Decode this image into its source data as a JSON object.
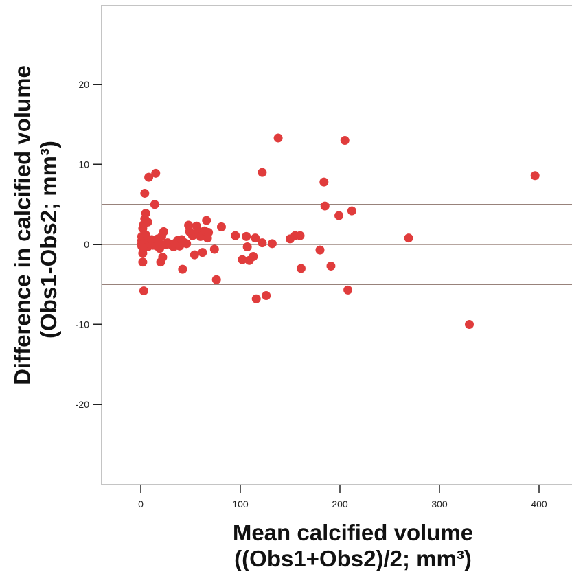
{
  "chart_data": {
    "type": "scatter",
    "title": "",
    "xlabel": [
      "Mean calcified volume",
      "((Obs1+Obs2)/2; mm³)"
    ],
    "ylabel": [
      "Difference in calcified volume",
      "(Obs1-Obs2; mm³)"
    ],
    "xlim": [
      -40,
      430
    ],
    "ylim": [
      -30,
      30
    ],
    "xticks": [
      0,
      100,
      200,
      300,
      400
    ],
    "yticks": [
      -20,
      -10,
      0,
      10,
      20
    ],
    "reference_lines": [
      5,
      0,
      -5
    ],
    "grid": false,
    "legend": "none",
    "colors": {
      "point": "#e03c3c",
      "reference_line": "#8a7068",
      "axis": "#555555",
      "frame": "#888888"
    },
    "series": [
      {
        "points": [
          [
            1,
            0.1
          ],
          [
            1,
            0.5
          ],
          [
            1,
            1
          ],
          [
            1,
            -0.2
          ],
          [
            2,
            2
          ],
          [
            2,
            0.3
          ],
          [
            2,
            -0.4
          ],
          [
            2,
            -1.1
          ],
          [
            2,
            -2.2
          ],
          [
            3,
            2.5
          ],
          [
            3,
            0.8
          ],
          [
            3,
            -5.8
          ],
          [
            4,
            6.4
          ],
          [
            4,
            3.2
          ],
          [
            5,
            3.9
          ],
          [
            5,
            1.2
          ],
          [
            5,
            0.2
          ],
          [
            6,
            0.6
          ],
          [
            7,
            2.8
          ],
          [
            7,
            -0.3
          ],
          [
            8,
            8.4
          ],
          [
            8,
            0.5
          ],
          [
            9,
            0.2
          ],
          [
            10,
            0
          ],
          [
            11,
            0.6
          ],
          [
            12,
            -0.1
          ],
          [
            14,
            5
          ],
          [
            14,
            0.4
          ],
          [
            15,
            8.9
          ],
          [
            16,
            -0.2
          ],
          [
            17,
            0.7
          ],
          [
            18,
            0.2
          ],
          [
            19,
            -0.5
          ],
          [
            20,
            -2.2
          ],
          [
            21,
            1
          ],
          [
            22,
            -1.6
          ],
          [
            23,
            1.6
          ],
          [
            25,
            0
          ],
          [
            27,
            0.2
          ],
          [
            30,
            0
          ],
          [
            33,
            -0.3
          ],
          [
            35,
            0.2
          ],
          [
            37,
            0.5
          ],
          [
            39,
            -0.2
          ],
          [
            41,
            0.6
          ],
          [
            42,
            -3.1
          ],
          [
            44,
            0.2
          ],
          [
            46,
            0.1
          ],
          [
            48,
            2.4
          ],
          [
            49,
            1.6
          ],
          [
            52,
            1.1
          ],
          [
            54,
            -1.3
          ],
          [
            56,
            2.3
          ],
          [
            58,
            1.6
          ],
          [
            60,
            1
          ],
          [
            62,
            -1
          ],
          [
            64,
            1.7
          ],
          [
            66,
            3
          ],
          [
            67,
            0.8
          ],
          [
            68,
            1.5
          ],
          [
            74,
            -0.6
          ],
          [
            76,
            -4.4
          ],
          [
            81,
            2.2
          ],
          [
            95,
            1.1
          ],
          [
            102,
            -1.9
          ],
          [
            106,
            1
          ],
          [
            107,
            -0.3
          ],
          [
            109,
            -2
          ],
          [
            113,
            -1.5
          ],
          [
            115,
            0.8
          ],
          [
            116,
            -6.8
          ],
          [
            122,
            9
          ],
          [
            122,
            0.2
          ],
          [
            126,
            -6.4
          ],
          [
            132,
            0.1
          ],
          [
            138,
            13.3
          ],
          [
            150,
            0.7
          ],
          [
            155,
            1.1
          ],
          [
            160,
            1.1
          ],
          [
            161,
            -3
          ],
          [
            180,
            -0.7
          ],
          [
            184,
            7.8
          ],
          [
            185,
            4.8
          ],
          [
            191,
            -2.7
          ],
          [
            199,
            3.6
          ],
          [
            205,
            13
          ],
          [
            208,
            -5.7
          ],
          [
            212,
            4.2
          ],
          [
            269,
            0.8
          ],
          [
            330,
            -10
          ],
          [
            396,
            8.6
          ]
        ]
      }
    ]
  }
}
